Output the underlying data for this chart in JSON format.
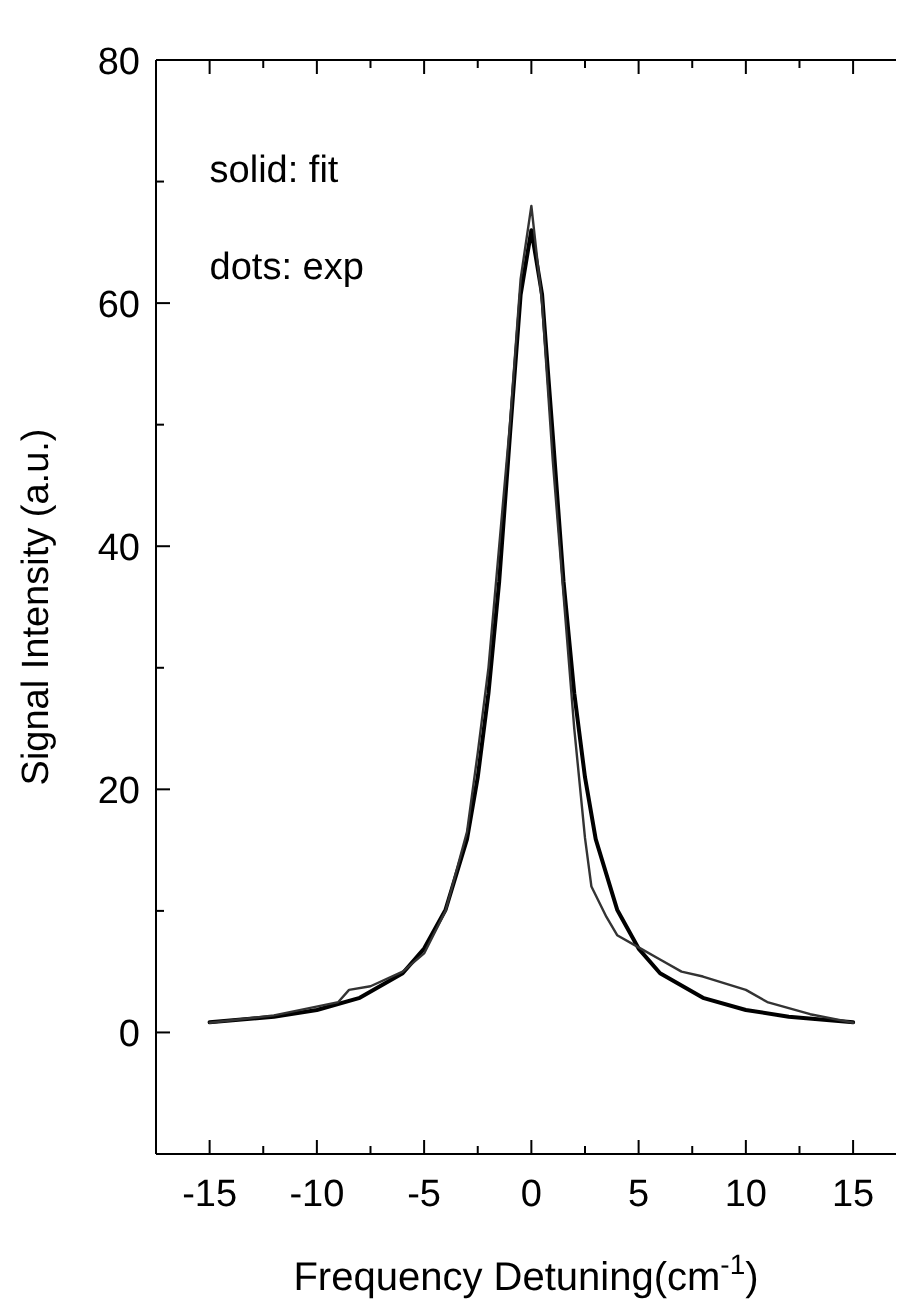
{
  "chart_data": {
    "type": "line",
    "xlabel": "Frequency Detuning(cm$^{-1}$)",
    "ylabel": "Signal Intensity (a.u.)",
    "xlim": [
      -17.5,
      17
    ],
    "ylim": [
      -10,
      80
    ],
    "xticks": [
      -15,
      {
        "value": -12.5,
        "label": null
      },
      -10,
      {
        "value": -7.5,
        "label": null
      },
      -5,
      {
        "value": -2.5,
        "label": null
      },
      0,
      {
        "value": 2.5,
        "label": null
      },
      5,
      {
        "value": 7.5,
        "label": null
      },
      10,
      {
        "value": 12.5,
        "label": null
      },
      15
    ],
    "yticks": [
      {
        "value": -10,
        "label": null
      },
      0,
      {
        "value": 10,
        "label": null
      },
      20,
      {
        "value": 30,
        "label": null
      },
      40,
      {
        "value": 50,
        "label": null
      },
      60,
      {
        "value": 70,
        "label": null
      },
      80
    ],
    "annotations": [
      "solid: fit",
      "dots: exp"
    ],
    "series": [
      {
        "color": "#000000",
        "x": [
          -15,
          -12,
          -10,
          -8,
          -6,
          -5,
          -4,
          -3,
          -2.5,
          -2,
          -1.5,
          -1,
          -0.5,
          0,
          0.5,
          1,
          1.5,
          2,
          2.5,
          3,
          4,
          5,
          6,
          8,
          10,
          12,
          15
        ],
        "values": [
          0.84,
          1.29,
          1.85,
          2.85,
          4.87,
          6.9,
          10.1,
          15.9,
          21,
          27.9,
          37.1,
          49.1,
          60.7,
          66,
          60.7,
          49.1,
          37.1,
          27.9,
          21,
          15.9,
          10.1,
          6.9,
          4.87,
          2.85,
          1.85,
          1.29,
          0.84
        ]
      },
      {
        "color": "#333333",
        "x": [
          -15,
          -12,
          -9,
          -8.5,
          -7.5,
          -6,
          -5,
          -4,
          -3,
          -2.5,
          -2,
          -1,
          -0.5,
          0,
          0.5,
          1,
          2,
          2.5,
          2.8,
          3.5,
          4,
          5,
          6,
          7,
          8,
          10,
          11,
          13,
          15
        ],
        "values": [
          0.8,
          1.4,
          2.5,
          3.5,
          3.8,
          5,
          6.5,
          10,
          16.5,
          23,
          30,
          50,
          62,
          68,
          60,
          47,
          25,
          16,
          12,
          9.5,
          8,
          7,
          6,
          5,
          4.6,
          3.5,
          2.5,
          1.5,
          0.8
        ]
      }
    ]
  }
}
